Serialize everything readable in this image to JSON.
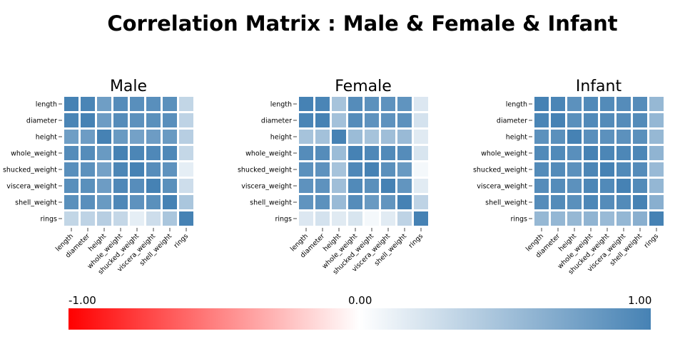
{
  "title": "Correlation Matrix : Male & Female & Infant",
  "chart_data": {
    "type": "heatmap",
    "title": "Correlation Matrix : Male & Female & Infant",
    "variables": [
      "length",
      "diameter",
      "height",
      "whole_weight",
      "shucked_weight",
      "viscera_weight",
      "shell_weight",
      "rings"
    ],
    "colorscale": {
      "min": -1,
      "max": 1,
      "colors": [
        "#ff0000",
        "#ffffff",
        "#4682b4"
      ],
      "tick_labels": [
        "-1.00",
        "0.00",
        "1.00"
      ]
    },
    "panels": [
      {
        "name": "Male",
        "matrix": [
          [
            1,
            0.98,
            0.78,
            0.92,
            0.9,
            0.9,
            0.89,
            0.33
          ],
          [
            0.98,
            1,
            0.79,
            0.92,
            0.88,
            0.89,
            0.9,
            0.35
          ],
          [
            0.78,
            0.79,
            1,
            0.81,
            0.75,
            0.79,
            0.81,
            0.39
          ],
          [
            0.92,
            0.92,
            0.81,
            1,
            0.97,
            0.95,
            0.95,
            0.32
          ],
          [
            0.9,
            0.88,
            0.75,
            0.97,
            1,
            0.91,
            0.87,
            0.14
          ],
          [
            0.9,
            0.89,
            0.79,
            0.95,
            0.91,
            1,
            0.89,
            0.27
          ],
          [
            0.89,
            0.9,
            0.81,
            0.95,
            0.87,
            0.89,
            1,
            0.46
          ],
          [
            0.33,
            0.35,
            0.39,
            0.32,
            0.14,
            0.27,
            0.46,
            1
          ]
        ]
      },
      {
        "name": "Female",
        "matrix": [
          [
            1,
            0.98,
            0.48,
            0.92,
            0.88,
            0.87,
            0.86,
            0.19
          ],
          [
            0.98,
            1,
            0.5,
            0.92,
            0.87,
            0.87,
            0.88,
            0.23
          ],
          [
            0.48,
            0.5,
            1,
            0.54,
            0.48,
            0.52,
            0.55,
            0.17
          ],
          [
            0.92,
            0.92,
            0.54,
            1,
            0.95,
            0.94,
            0.92,
            0.21
          ],
          [
            0.88,
            0.87,
            0.48,
            0.95,
            1,
            0.89,
            0.81,
            0.06
          ],
          [
            0.87,
            0.87,
            0.52,
            0.94,
            0.89,
            1,
            0.85,
            0.16
          ],
          [
            0.86,
            0.88,
            0.55,
            0.92,
            0.81,
            0.85,
            1,
            0.35
          ],
          [
            0.19,
            0.23,
            0.17,
            0.21,
            0.06,
            0.16,
            0.35,
            1
          ]
        ]
      },
      {
        "name": "Infant",
        "matrix": [
          [
            1,
            0.98,
            0.88,
            0.94,
            0.93,
            0.92,
            0.92,
            0.57
          ],
          [
            0.98,
            1,
            0.89,
            0.94,
            0.93,
            0.92,
            0.93,
            0.58
          ],
          [
            0.88,
            0.89,
            1,
            0.9,
            0.88,
            0.88,
            0.89,
            0.57
          ],
          [
            0.94,
            0.94,
            0.9,
            1,
            0.97,
            0.96,
            0.96,
            0.6
          ],
          [
            0.93,
            0.93,
            0.88,
            0.97,
            1,
            0.94,
            0.92,
            0.55
          ],
          [
            0.92,
            0.92,
            0.88,
            0.96,
            0.94,
            1,
            0.93,
            0.58
          ],
          [
            0.92,
            0.93,
            0.89,
            0.96,
            0.92,
            0.93,
            1,
            0.64
          ],
          [
            0.57,
            0.58,
            0.57,
            0.6,
            0.55,
            0.58,
            0.64,
            1
          ]
        ]
      }
    ]
  }
}
